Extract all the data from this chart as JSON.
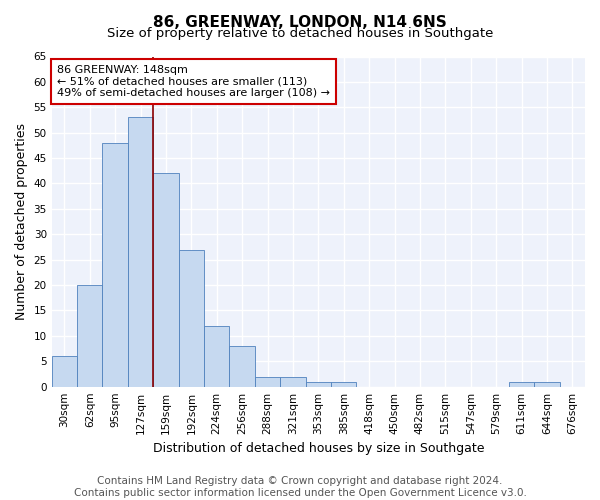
{
  "title": "86, GREENWAY, LONDON, N14 6NS",
  "subtitle": "Size of property relative to detached houses in Southgate",
  "xlabel": "Distribution of detached houses by size in Southgate",
  "ylabel": "Number of detached properties",
  "bar_labels": [
    "30sqm",
    "62sqm",
    "95sqm",
    "127sqm",
    "159sqm",
    "192sqm",
    "224sqm",
    "256sqm",
    "288sqm",
    "321sqm",
    "353sqm",
    "385sqm",
    "418sqm",
    "450sqm",
    "482sqm",
    "515sqm",
    "547sqm",
    "579sqm",
    "611sqm",
    "644sqm",
    "676sqm"
  ],
  "bar_values": [
    6,
    20,
    48,
    53,
    42,
    27,
    12,
    8,
    2,
    2,
    1,
    1,
    0,
    0,
    0,
    0,
    0,
    0,
    1,
    1,
    0
  ],
  "bar_color": "#c6d9f0",
  "bar_edge_color": "#4f81bd",
  "red_line_index": 4,
  "red_line_color": "#8b0000",
  "annotation_text": "86 GREENWAY: 148sqm\n← 51% of detached houses are smaller (113)\n49% of semi-detached houses are larger (108) →",
  "annotation_box_color": "white",
  "annotation_box_edge": "#cc0000",
  "footnote": "Contains HM Land Registry data © Crown copyright and database right 2024.\nContains public sector information licensed under the Open Government Licence v3.0.",
  "ylim": [
    0,
    65
  ],
  "yticks": [
    0,
    5,
    10,
    15,
    20,
    25,
    30,
    35,
    40,
    45,
    50,
    55,
    60,
    65
  ],
  "background_color": "#eef2fb",
  "grid_color": "#ffffff",
  "title_fontsize": 11,
  "subtitle_fontsize": 9.5,
  "ylabel_fontsize": 9,
  "xlabel_fontsize": 9,
  "tick_fontsize": 7.5,
  "annotation_fontsize": 8,
  "footnote_fontsize": 7.5
}
